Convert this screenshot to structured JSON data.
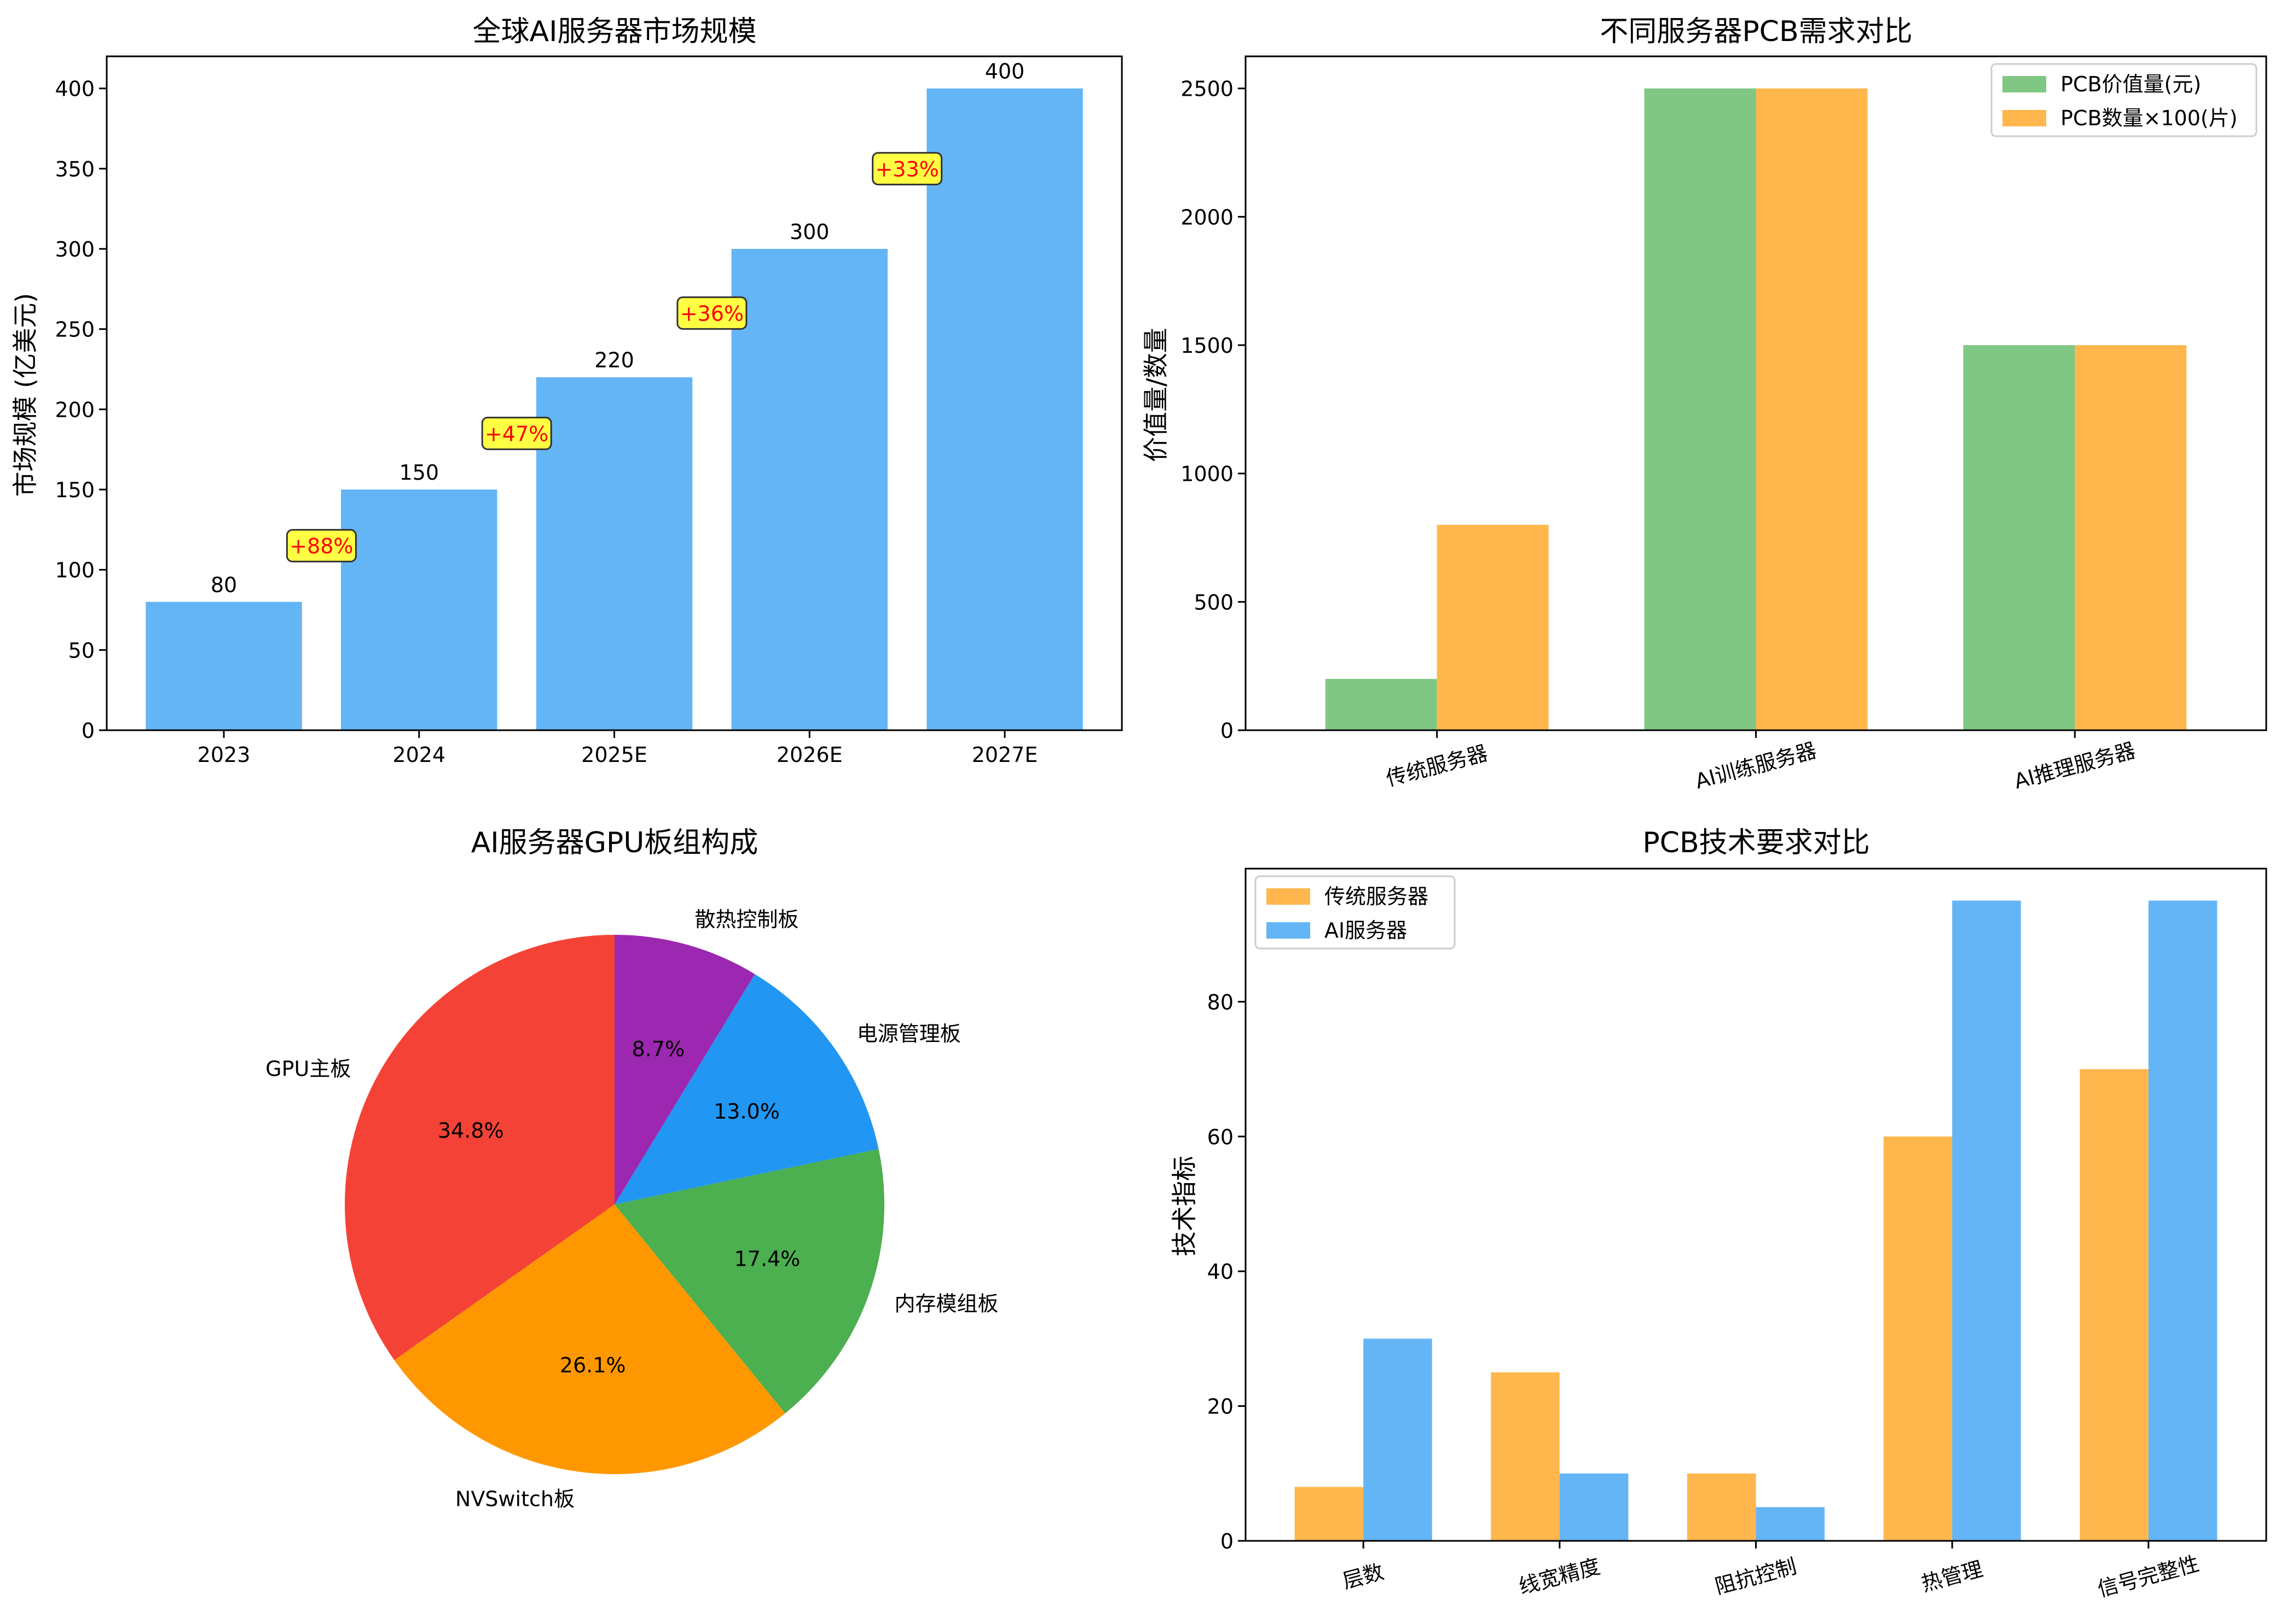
{
  "chart_data": [
    {
      "type": "bar",
      "title": "全球AI服务器市场规模",
      "xlabel": "",
      "ylabel": "市场规模 (亿美元)",
      "categories": [
        "2023",
        "2024",
        "2025E",
        "2026E",
        "2027E"
      ],
      "values": [
        80,
        150,
        220,
        300,
        400
      ],
      "value_labels": [
        "80",
        "150",
        "220",
        "300",
        "400"
      ],
      "growth_labels": [
        "+88%",
        "+47%",
        "+36%",
        "+33%"
      ],
      "yticks": [
        0,
        50,
        100,
        150,
        200,
        250,
        300,
        350,
        400
      ],
      "ylim": [
        0,
        420
      ],
      "bar_color": "#64b5f6",
      "annotation_face": "#ffff44",
      "annotation_text_color": "#ff0000",
      "grid": false
    },
    {
      "type": "bar",
      "title": "不同服务器PCB需求对比",
      "xlabel": "",
      "ylabel": "价值量/数量",
      "categories": [
        "传统服务器",
        "AI训练服务器",
        "AI推理服务器"
      ],
      "series": [
        {
          "name": "PCB价值量(元)",
          "values": [
            200,
            2500,
            1500
          ],
          "color": "#81c784"
        },
        {
          "name": "PCB数量×100(片)",
          "values": [
            800,
            2500,
            1500
          ],
          "color": "#ffb74d"
        }
      ],
      "yticks": [
        0,
        500,
        1000,
        1500,
        2000,
        2500
      ],
      "ylim": [
        0,
        2625
      ],
      "legend": "top-right",
      "grid": false
    },
    {
      "type": "pie",
      "title": "AI服务器GPU板组构成",
      "labels": [
        "GPU主板",
        "NVSwitch板",
        "内存模组板",
        "电源管理板",
        "散热控制板"
      ],
      "values": [
        34.8,
        26.1,
        17.4,
        13.0,
        8.7
      ],
      "pct_labels": [
        "34.8%",
        "26.1%",
        "17.4%",
        "13.0%",
        "8.7%"
      ],
      "colors": [
        "#f44336",
        "#ff9800",
        "#4caf50",
        "#2196f3",
        "#9c27b0"
      ]
    },
    {
      "type": "bar",
      "title": "PCB技术要求对比",
      "xlabel": "",
      "ylabel": "技术指标",
      "categories": [
        "层数",
        "线宽精度",
        "阻抗控制",
        "热管理",
        "信号完整性"
      ],
      "series": [
        {
          "name": "传统服务器",
          "values": [
            8,
            25,
            10,
            60,
            70
          ],
          "color": "#ffb74d"
        },
        {
          "name": "AI服务器",
          "values": [
            30,
            10,
            5,
            95,
            95
          ],
          "color": "#64b5f6"
        }
      ],
      "yticks": [
        0,
        20,
        40,
        60,
        80
      ],
      "ylim": [
        0,
        99.75
      ],
      "legend": "top-left",
      "grid": false
    }
  ]
}
